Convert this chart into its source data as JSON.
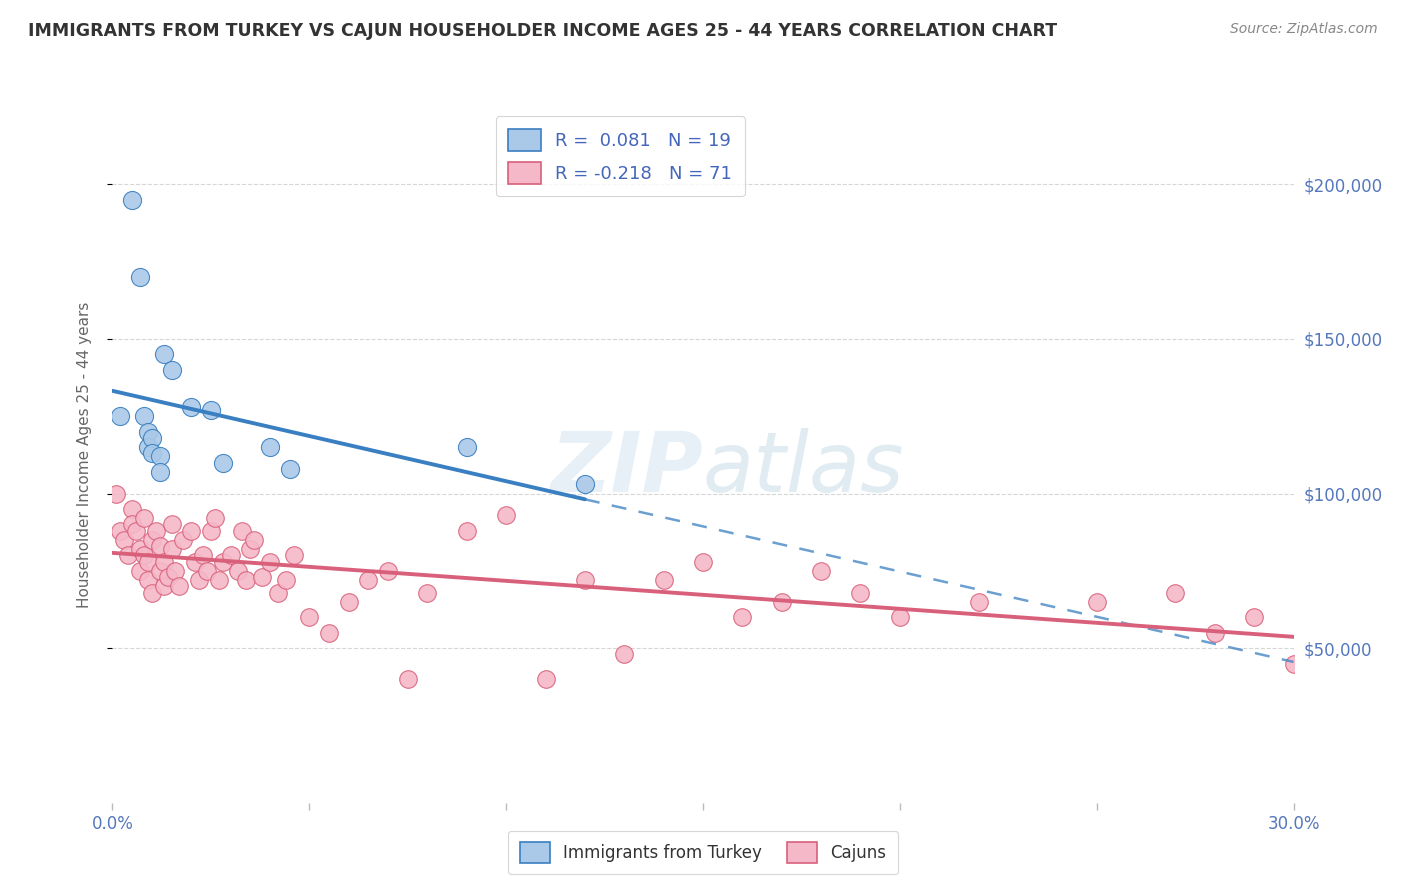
{
  "title": "IMMIGRANTS FROM TURKEY VS CAJUN HOUSEHOLDER INCOME AGES 25 - 44 YEARS CORRELATION CHART",
  "source": "Source: ZipAtlas.com",
  "ylabel": "Householder Income Ages 25 - 44 years",
  "y_ticks": [
    50000,
    100000,
    150000,
    200000
  ],
  "y_tick_labels": [
    "$50,000",
    "$100,000",
    "$150,000",
    "$200,000"
  ],
  "xlim": [
    0.0,
    0.3
  ],
  "ylim": [
    0,
    225000
  ],
  "legend1_label": "R =  0.081   N = 19",
  "legend2_label": "R = -0.218   N = 71",
  "legend_series1": "Immigrants from Turkey",
  "legend_series2": "Cajuns",
  "color_turkey": "#aac9e8",
  "color_cajun": "#f5b8c8",
  "color_turkey_line": "#3a7fc1",
  "color_cajun_line": "#d9607a",
  "turkey_scatter_x": [
    0.002,
    0.005,
    0.007,
    0.008,
    0.009,
    0.009,
    0.01,
    0.01,
    0.012,
    0.012,
    0.013,
    0.015,
    0.02,
    0.025,
    0.028,
    0.04,
    0.045,
    0.09,
    0.12
  ],
  "turkey_scatter_y": [
    125000,
    195000,
    170000,
    125000,
    120000,
    115000,
    118000,
    113000,
    112000,
    107000,
    145000,
    140000,
    128000,
    127000,
    110000,
    115000,
    108000,
    115000,
    103000
  ],
  "cajun_scatter_x": [
    0.001,
    0.002,
    0.003,
    0.004,
    0.005,
    0.005,
    0.006,
    0.007,
    0.007,
    0.008,
    0.008,
    0.009,
    0.009,
    0.01,
    0.01,
    0.011,
    0.012,
    0.012,
    0.013,
    0.013,
    0.014,
    0.015,
    0.015,
    0.016,
    0.017,
    0.018,
    0.02,
    0.021,
    0.022,
    0.023,
    0.024,
    0.025,
    0.026,
    0.027,
    0.028,
    0.03,
    0.032,
    0.033,
    0.034,
    0.035,
    0.036,
    0.038,
    0.04,
    0.042,
    0.044,
    0.046,
    0.05,
    0.055,
    0.06,
    0.065,
    0.07,
    0.075,
    0.08,
    0.09,
    0.1,
    0.11,
    0.12,
    0.13,
    0.14,
    0.16,
    0.18,
    0.2,
    0.22,
    0.25,
    0.27,
    0.28,
    0.29,
    0.3,
    0.19,
    0.17,
    0.15
  ],
  "cajun_scatter_y": [
    100000,
    88000,
    85000,
    80000,
    95000,
    90000,
    88000,
    82000,
    75000,
    92000,
    80000,
    78000,
    72000,
    85000,
    68000,
    88000,
    83000,
    75000,
    70000,
    78000,
    73000,
    90000,
    82000,
    75000,
    70000,
    85000,
    88000,
    78000,
    72000,
    80000,
    75000,
    88000,
    92000,
    72000,
    78000,
    80000,
    75000,
    88000,
    72000,
    82000,
    85000,
    73000,
    78000,
    68000,
    72000,
    80000,
    60000,
    55000,
    65000,
    72000,
    75000,
    40000,
    68000,
    88000,
    93000,
    40000,
    72000,
    48000,
    72000,
    60000,
    75000,
    60000,
    65000,
    65000,
    68000,
    55000,
    60000,
    45000,
    68000,
    65000,
    78000
  ]
}
